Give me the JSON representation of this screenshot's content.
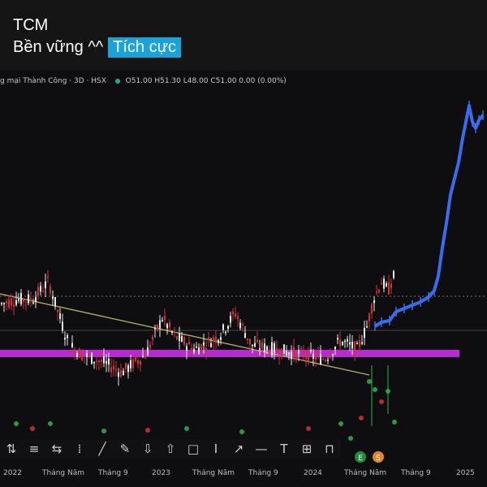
{
  "post": {
    "title": "TCM",
    "subtitle": "Bền vững ^^",
    "tag": "Tích cực"
  },
  "chart_header": {
    "symbol_text": "g mại Thành Công · 3D · HSX",
    "ohlc_text": "O51.00 H51.30 L48.00 C51.00 0.00 (0.00%)"
  },
  "x_axis_ticks": [
    "2022",
    "Tháng Năm",
    "Tháng 9",
    "2023",
    "Tháng Năm",
    "Tháng 9",
    "2024",
    "Tháng Năm",
    "Tháng 9",
    "2025"
  ],
  "toolbar_icons": [
    "pin-icon",
    "lines-icon",
    "bars-icon",
    "candles-icon",
    "line-tool-icon",
    "pen-icon",
    "arrow-down-icon",
    "arrow-up-icon",
    "rect-icon",
    "text-cursor-icon",
    "curve-icon",
    "hline-icon",
    "text-icon",
    "grid-icon",
    "flag-icon"
  ],
  "toolbar_glyphs": [
    "⇅",
    "≡",
    "⇆",
    "⁞",
    "╱",
    "✎",
    "⇩",
    "⇧",
    "□",
    "Ⅰ",
    "↗",
    "—",
    "T",
    "⊞",
    "⊓"
  ],
  "badges": {
    "earnings": "E",
    "dividend": "S"
  },
  "colors": {
    "up": "#e8e8e8",
    "down": "#d2323a",
    "projection": "#3a6cf0",
    "support_band": "#b52ad1",
    "trendline": "#b7a865",
    "tag_bg": "#1aa3d9"
  },
  "chart_data": {
    "type": "candlestick",
    "title": "",
    "x_range": [
      "2021-11",
      "2025-02"
    ],
    "support_band": 49,
    "trendline": {
      "from": 62,
      "to": 46
    },
    "projection_peak": 95
  }
}
